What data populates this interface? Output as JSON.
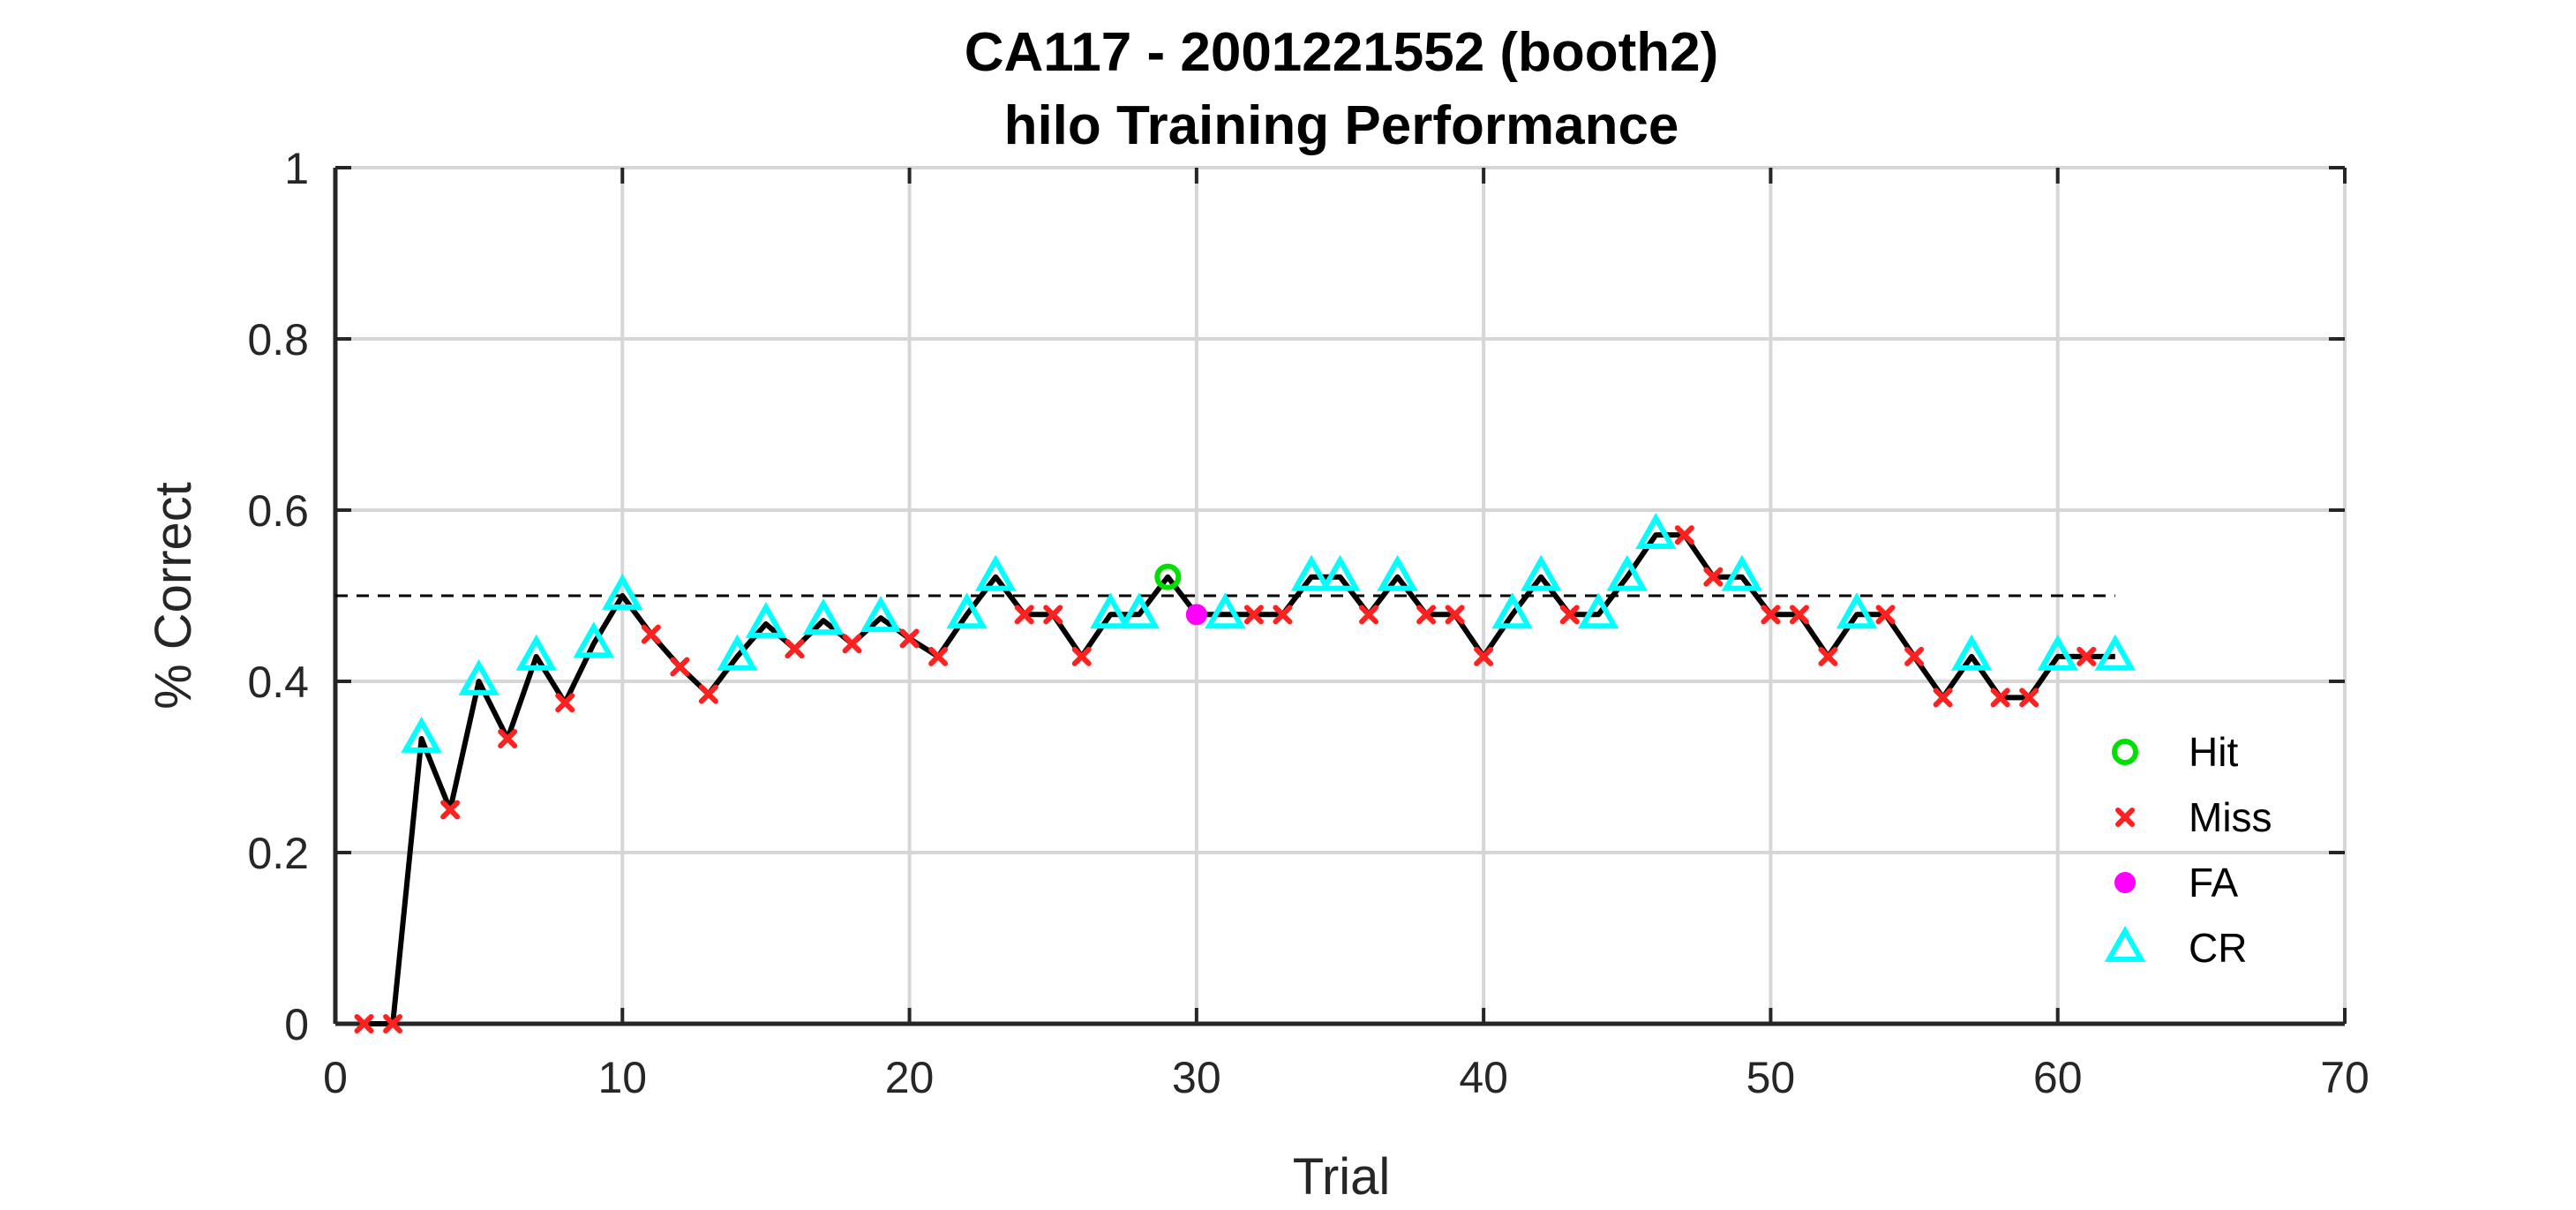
{
  "chart_data": {
    "type": "line",
    "title": "CA117 - 2001221552 (booth2)",
    "subtitle": "hilo Training Performance",
    "xlabel": "Trial",
    "ylabel": "% Correct",
    "xlim": [
      0,
      70
    ],
    "ylim": [
      0,
      1
    ],
    "xticks": [
      "0",
      "10",
      "20",
      "30",
      "40",
      "50",
      "60",
      "70"
    ],
    "yticks": [
      "0",
      "0.2",
      "0.4",
      "0.6",
      "0.8",
      "1"
    ],
    "grid": true,
    "legend_position": "bottom-right",
    "reference_line": {
      "y": 0.5,
      "x": [
        0,
        62
      ],
      "style": "dashed",
      "color": "#000000"
    },
    "line_color": "#000000",
    "outcomes": [
      {
        "name": "Hit",
        "marker": "circle-open",
        "color": "#00e000"
      },
      {
        "name": "Miss",
        "marker": "x",
        "color": "#ff2020"
      },
      {
        "name": "FA",
        "marker": "circle-filled",
        "color": "#ff00ff"
      },
      {
        "name": "CR",
        "marker": "triangle-open",
        "color": "#00ffff"
      }
    ],
    "x": [
      1,
      2,
      3,
      4,
      5,
      6,
      7,
      8,
      9,
      10,
      11,
      12,
      13,
      14,
      15,
      16,
      17,
      18,
      19,
      20,
      21,
      22,
      23,
      24,
      25,
      26,
      27,
      28,
      29,
      30,
      31,
      32,
      33,
      34,
      35,
      36,
      37,
      38,
      39,
      40,
      41,
      42,
      43,
      44,
      45,
      46,
      47,
      48,
      49,
      50,
      51,
      52,
      53,
      54,
      55,
      56,
      57,
      58,
      59,
      60,
      61,
      62
    ],
    "y": [
      0,
      0,
      0.333,
      0.25,
      0.4,
      0.333,
      0.429,
      0.375,
      0.444,
      0.5,
      0.455,
      0.417,
      0.385,
      0.429,
      0.467,
      0.438,
      0.471,
      0.444,
      0.474,
      0.45,
      0.429,
      0.478,
      0.522,
      0.478,
      0.478,
      0.429,
      0.478,
      0.478,
      0.522,
      0.478,
      0.478,
      0.478,
      0.478,
      0.522,
      0.522,
      0.478,
      0.522,
      0.478,
      0.478,
      0.429,
      0.478,
      0.522,
      0.478,
      0.478,
      0.522,
      0.571,
      0.571,
      0.522,
      0.522,
      0.478,
      0.478,
      0.429,
      0.478,
      0.478,
      0.429,
      0.381,
      0.429,
      0.381,
      0.381,
      0.429,
      0.429,
      0.429
    ],
    "outcome": [
      "Miss",
      "Miss",
      "CR",
      "Miss",
      "CR",
      "Miss",
      "CR",
      "Miss",
      "CR",
      "CR",
      "Miss",
      "Miss",
      "Miss",
      "CR",
      "CR",
      "Miss",
      "CR",
      "Miss",
      "CR",
      "Miss",
      "Miss",
      "CR",
      "CR",
      "Miss",
      "Miss",
      "Miss",
      "CR",
      "CR",
      "Hit",
      "FA",
      "CR",
      "Miss",
      "Miss",
      "CR",
      "CR",
      "Miss",
      "CR",
      "Miss",
      "Miss",
      "Miss",
      "CR",
      "CR",
      "Miss",
      "CR",
      "CR",
      "CR",
      "Miss",
      "Miss",
      "CR",
      "Miss",
      "Miss",
      "Miss",
      "CR",
      "Miss",
      "Miss",
      "Miss",
      "CR",
      "Miss",
      "Miss",
      "CR",
      "Miss",
      "CR"
    ]
  }
}
